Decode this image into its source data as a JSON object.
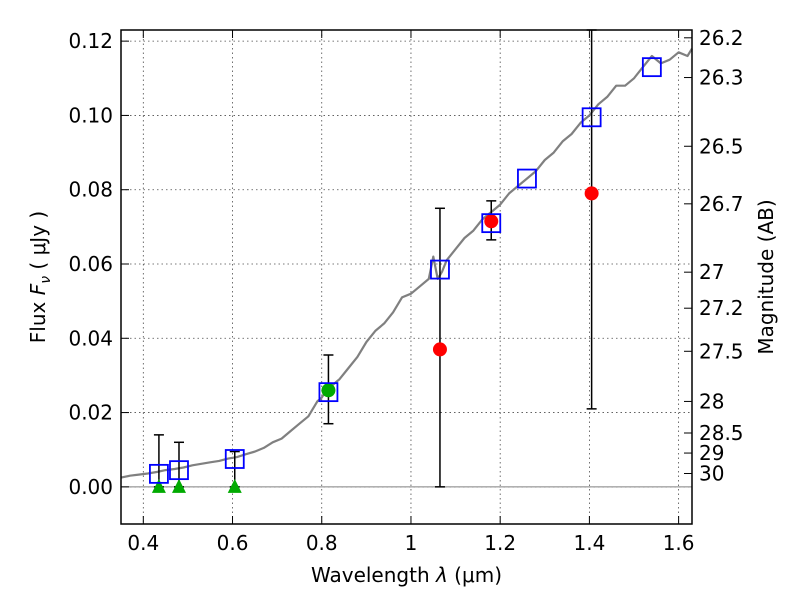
{
  "chart_data": {
    "type": "scatter",
    "title": "",
    "xlabel_text": "Wavelength  ",
    "xlabel_symbol": "λ",
    "xlabel_unit": " (μm)",
    "ylabel_text": "Flux  ",
    "ylabel_symbol": "F",
    "ylabel_subscript": "ν",
    "ylabel_unit": "  ( μJy )",
    "y2label": "Magnitude (AB)",
    "xlim": [
      0.35,
      1.63
    ],
    "ylim": [
      -0.01,
      0.123
    ],
    "xticks": [
      0.4,
      0.6,
      0.8,
      1.0,
      1.2,
      1.4,
      1.6
    ],
    "xtick_labels": [
      "0.4",
      "0.6",
      "0.8",
      "1",
      "1.2",
      "1.4",
      "1.6"
    ],
    "yticks": [
      0.0,
      0.02,
      0.04,
      0.06,
      0.08,
      0.1,
      0.12
    ],
    "ytick_labels": [
      "0.00",
      "0.02",
      "0.04",
      "0.06",
      "0.08",
      "0.10",
      "0.12"
    ],
    "mag_ticks": [
      {
        "label": "26.2",
        "flux": 0.1209
      },
      {
        "label": "26.3",
        "flux": 0.1102
      },
      {
        "label": "26.5",
        "flux": 0.0917
      },
      {
        "label": "26.7",
        "flux": 0.0762
      },
      {
        "label": "27",
        "flux": 0.0578
      },
      {
        "label": "27.2",
        "flux": 0.0481
      },
      {
        "label": "27.5",
        "flux": 0.0365
      },
      {
        "label": "28",
        "flux": 0.023
      },
      {
        "label": "28.5",
        "flux": 0.0145
      },
      {
        "label": "29",
        "flux": 0.0091
      },
      {
        "label": "30",
        "flux": 0.0036
      }
    ],
    "grid": true,
    "colors": {
      "model_line": "#808080",
      "model_flux": "#0000ff",
      "observed": "#ff0000",
      "observed_alt": "#00aa00",
      "upper_limit": "#00aa00",
      "errorbar": "#000000",
      "zero_line": "#808080"
    },
    "series": [
      {
        "name": "model spectrum",
        "kind": "line",
        "x": [
          0.35,
          0.37,
          0.39,
          0.41,
          0.43,
          0.45,
          0.47,
          0.49,
          0.51,
          0.53,
          0.55,
          0.57,
          0.59,
          0.61,
          0.63,
          0.65,
          0.67,
          0.69,
          0.71,
          0.73,
          0.75,
          0.77,
          0.79,
          0.8,
          0.81,
          0.82,
          0.84,
          0.86,
          0.88,
          0.9,
          0.92,
          0.94,
          0.96,
          0.98,
          1.0,
          1.02,
          1.04,
          1.05,
          1.06,
          1.07,
          1.08,
          1.1,
          1.12,
          1.14,
          1.16,
          1.18,
          1.2,
          1.22,
          1.24,
          1.26,
          1.28,
          1.3,
          1.32,
          1.34,
          1.36,
          1.38,
          1.4,
          1.42,
          1.44,
          1.46,
          1.48,
          1.5,
          1.52,
          1.54,
          1.56,
          1.58,
          1.6,
          1.62,
          1.63
        ],
        "y": [
          0.0025,
          0.003,
          0.0033,
          0.0036,
          0.004,
          0.0045,
          0.0048,
          0.0052,
          0.0058,
          0.0062,
          0.0066,
          0.007,
          0.0076,
          0.008,
          0.0088,
          0.0095,
          0.0105,
          0.012,
          0.013,
          0.015,
          0.017,
          0.019,
          0.023,
          0.024,
          0.026,
          0.027,
          0.029,
          0.032,
          0.035,
          0.039,
          0.042,
          0.044,
          0.047,
          0.051,
          0.052,
          0.054,
          0.056,
          0.062,
          0.056,
          0.058,
          0.061,
          0.064,
          0.067,
          0.069,
          0.072,
          0.074,
          0.076,
          0.079,
          0.081,
          0.083,
          0.085,
          0.088,
          0.09,
          0.093,
          0.095,
          0.098,
          0.1,
          0.103,
          0.105,
          0.108,
          0.108,
          0.11,
          0.113,
          0.116,
          0.114,
          0.115,
          0.117,
          0.116,
          0.118
        ]
      },
      {
        "name": "model flux",
        "kind": "open-square",
        "x": [
          0.435,
          0.48,
          0.605,
          0.815,
          1.065,
          1.18,
          1.26,
          1.405,
          1.54
        ],
        "y": [
          0.0035,
          0.0045,
          0.0075,
          0.0255,
          0.0585,
          0.071,
          0.083,
          0.0995,
          0.113
        ]
      },
      {
        "name": "observed flux",
        "kind": "filled-circle",
        "x": [
          0.815,
          1.065,
          1.18,
          1.405
        ],
        "y": [
          0.026,
          0.037,
          0.0715,
          0.079
        ],
        "colors": [
          "#00aa00",
          "#ff0000",
          "#ff0000",
          "#ff0000"
        ]
      },
      {
        "name": "upper limits",
        "kind": "triangle",
        "x": [
          0.435,
          0.48,
          0.605
        ],
        "y": [
          0.0,
          0.0,
          0.0
        ]
      }
    ],
    "errorbars": [
      {
        "x": 0.435,
        "low": 0.0,
        "high": 0.014
      },
      {
        "x": 0.48,
        "low": 0.0,
        "high": 0.012
      },
      {
        "x": 0.605,
        "low": 0.0,
        "high": 0.0095
      },
      {
        "x": 0.815,
        "low": 0.017,
        "high": 0.0355
      },
      {
        "x": 1.065,
        "low": 0.0,
        "high": 0.075
      },
      {
        "x": 1.18,
        "low": 0.0665,
        "high": 0.077
      },
      {
        "x": 1.405,
        "low": 0.021,
        "high": 0.123
      }
    ]
  }
}
